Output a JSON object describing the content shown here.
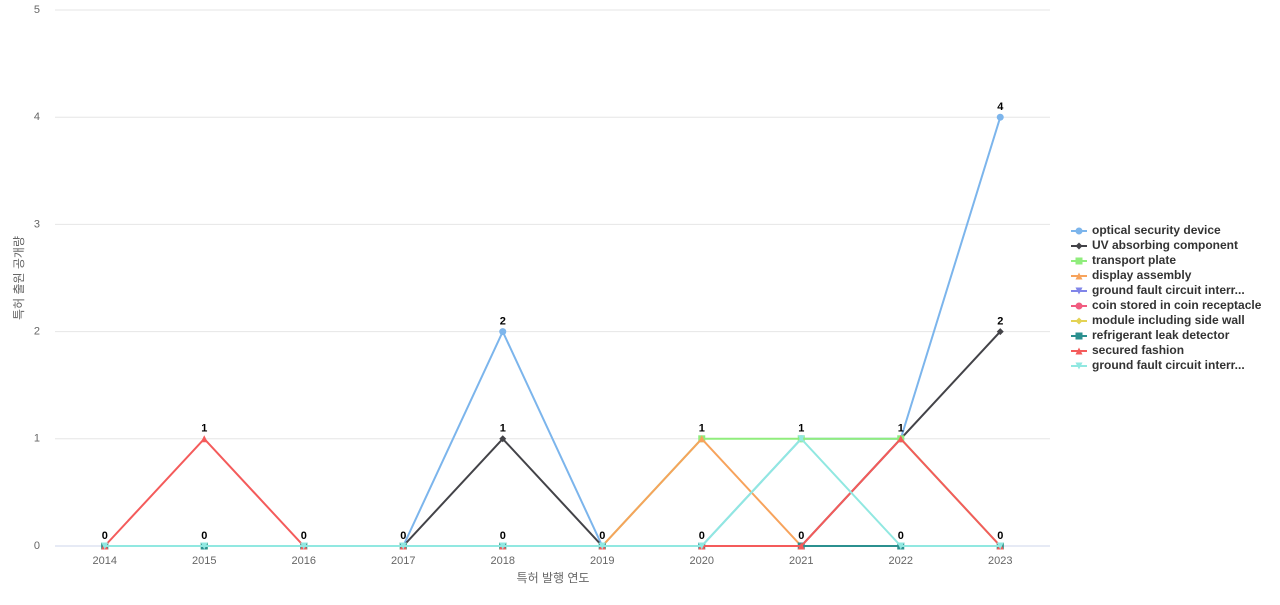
{
  "chart_data": {
    "type": "line",
    "x_label": "특허 발행 연도",
    "y_label": "특허 출원 공개량",
    "categories": [
      "2014",
      "2015",
      "2016",
      "2017",
      "2018",
      "2019",
      "2020",
      "2021",
      "2022",
      "2023"
    ],
    "ylim": [
      0,
      5
    ],
    "yticks": [
      0,
      1,
      2,
      3,
      4,
      5
    ],
    "grid": true,
    "legend": "right",
    "series": [
      {
        "name": "optical security device",
        "color": "#7cb5ec",
        "marker": "circle",
        "values": [
          0,
          0,
          0,
          0,
          2,
          0,
          0,
          1,
          1,
          4
        ]
      },
      {
        "name": "UV absorbing component",
        "color": "#434348",
        "marker": "diamond",
        "values": [
          0,
          0,
          0,
          0,
          1,
          0,
          0,
          0,
          1,
          2
        ]
      },
      {
        "name": "transport plate",
        "color": "#90ed7d",
        "marker": "square",
        "values": [
          0,
          0,
          0,
          0,
          0,
          0,
          1,
          1,
          1,
          0
        ]
      },
      {
        "name": "display assembly",
        "color": "#f7a35c",
        "marker": "triangle",
        "values": [
          0,
          0,
          0,
          0,
          0,
          0,
          1,
          0,
          0,
          0
        ]
      },
      {
        "name": "ground fault circuit interr...",
        "color": "#8085e9",
        "marker": "triangle-down",
        "values": [
          0,
          0,
          0,
          0,
          0,
          0,
          0,
          0,
          0,
          0
        ]
      },
      {
        "name": "coin stored in coin receptacle",
        "color": "#f15c80",
        "marker": "circle",
        "values": [
          0,
          0,
          0,
          0,
          0,
          0,
          0,
          0,
          0,
          0
        ]
      },
      {
        "name": "module including side wall",
        "color": "#e4d354",
        "marker": "diamond",
        "values": [
          0,
          0,
          0,
          0,
          0,
          0,
          0,
          0,
          0,
          0
        ]
      },
      {
        "name": "refrigerant leak detector",
        "color": "#2b908f",
        "marker": "square",
        "values": [
          0,
          0,
          0,
          0,
          0,
          0,
          0,
          0,
          0,
          0
        ]
      },
      {
        "name": "secured fashion",
        "color": "#f45b5b",
        "marker": "triangle",
        "values": [
          0,
          1,
          0,
          0,
          0,
          0,
          0,
          0,
          1,
          0
        ]
      },
      {
        "name": "ground fault circuit interr...",
        "color": "#91e8e1",
        "marker": "triangle-down",
        "values": [
          0,
          0,
          0,
          0,
          0,
          0,
          0,
          1,
          0,
          0
        ]
      }
    ]
  }
}
